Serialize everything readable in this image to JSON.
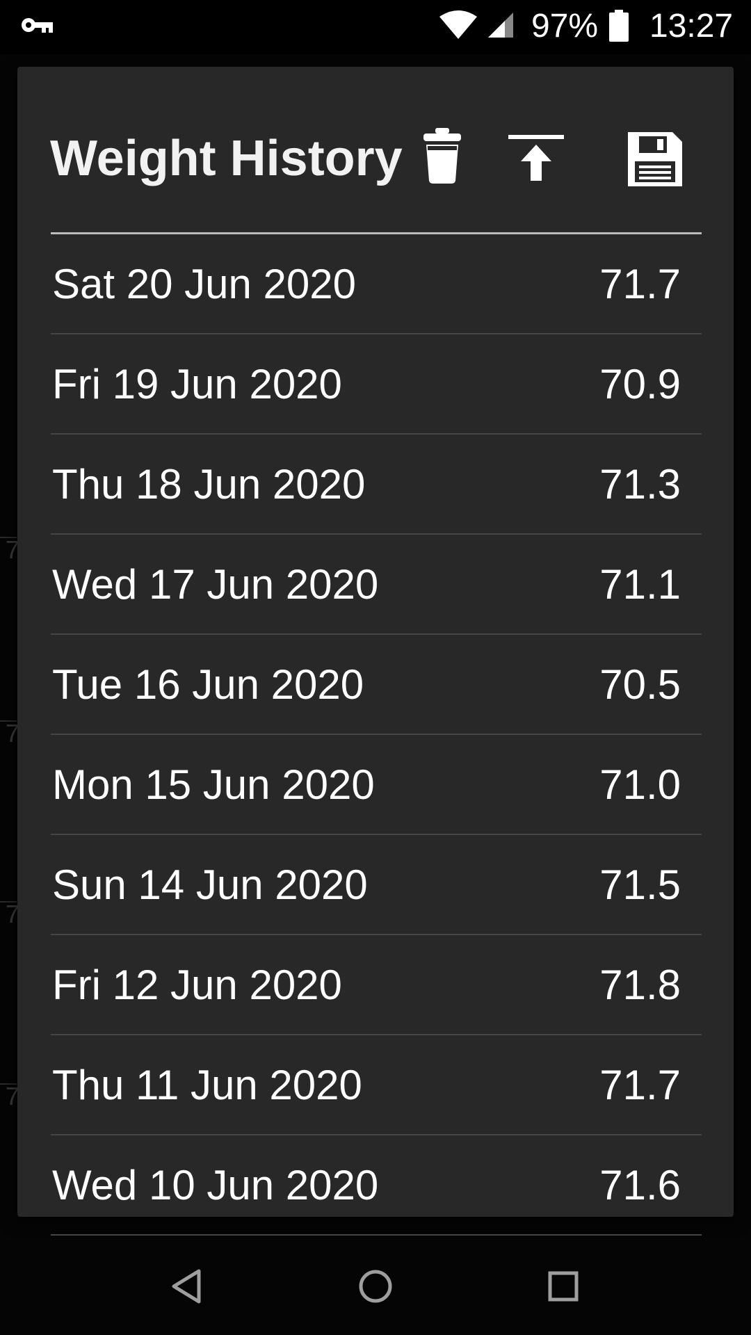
{
  "status_bar": {
    "battery_percent": "97%",
    "time": "13:27",
    "icons": [
      "vpn-key-icon",
      "wifi-icon",
      "cell-signal-icon",
      "battery-icon"
    ]
  },
  "background": {
    "axis_labels": [
      "7",
      "7",
      "7",
      "7"
    ]
  },
  "dialog": {
    "title": "Weight History",
    "actions": [
      "trash-icon",
      "upload-icon",
      "save-icon"
    ],
    "entries": [
      {
        "date": "Sat 20 Jun 2020",
        "weight": "71.7"
      },
      {
        "date": "Fri 19 Jun 2020",
        "weight": "70.9"
      },
      {
        "date": "Thu 18 Jun 2020",
        "weight": "71.3"
      },
      {
        "date": "Wed 17 Jun 2020",
        "weight": "71.1"
      },
      {
        "date": "Tue 16 Jun 2020",
        "weight": "70.5"
      },
      {
        "date": "Mon 15 Jun 2020",
        "weight": "71.0"
      },
      {
        "date": "Sun 14 Jun 2020",
        "weight": "71.5"
      },
      {
        "date": "Fri 12 Jun 2020",
        "weight": "71.8"
      },
      {
        "date": "Thu 11 Jun 2020",
        "weight": "71.7"
      },
      {
        "date": "Wed 10 Jun 2020",
        "weight": "71.6"
      }
    ]
  },
  "nav_bar": {
    "buttons": [
      "back-icon",
      "home-icon",
      "recents-icon"
    ]
  },
  "colors": {
    "dialog_background": "#282828",
    "screen_background": "#050505",
    "divider": "#464646",
    "header_divider": "#bdbdbd",
    "text": "#ffffff"
  }
}
